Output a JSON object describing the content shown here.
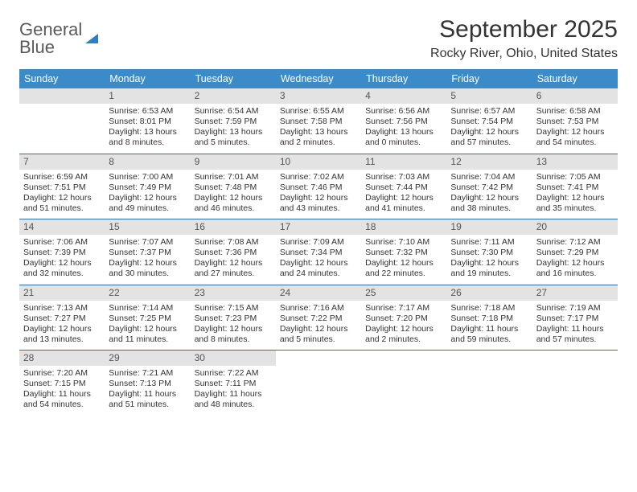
{
  "brand": {
    "name_top": "General",
    "name_bottom": "Blue"
  },
  "title": "September 2025",
  "location": "Rocky River, Ohio, United States",
  "colors": {
    "header_bg": "#3b8bc8",
    "week_divider": "#2d6fa8",
    "daynum_bg": "#e3e3e3",
    "text": "#333333",
    "brand_gray": "#5a5a5a",
    "brand_blue": "#2d7fc1"
  },
  "day_headers": [
    "Sunday",
    "Monday",
    "Tuesday",
    "Wednesday",
    "Thursday",
    "Friday",
    "Saturday"
  ],
  "weeks": [
    [
      {
        "n": "",
        "lines": []
      },
      {
        "n": "1",
        "lines": [
          "Sunrise: 6:53 AM",
          "Sunset: 8:01 PM",
          "Daylight: 13 hours and 8 minutes."
        ]
      },
      {
        "n": "2",
        "lines": [
          "Sunrise: 6:54 AM",
          "Sunset: 7:59 PM",
          "Daylight: 13 hours and 5 minutes."
        ]
      },
      {
        "n": "3",
        "lines": [
          "Sunrise: 6:55 AM",
          "Sunset: 7:58 PM",
          "Daylight: 13 hours and 2 minutes."
        ]
      },
      {
        "n": "4",
        "lines": [
          "Sunrise: 6:56 AM",
          "Sunset: 7:56 PM",
          "Daylight: 13 hours and 0 minutes."
        ]
      },
      {
        "n": "5",
        "lines": [
          "Sunrise: 6:57 AM",
          "Sunset: 7:54 PM",
          "Daylight: 12 hours and 57 minutes."
        ]
      },
      {
        "n": "6",
        "lines": [
          "Sunrise: 6:58 AM",
          "Sunset: 7:53 PM",
          "Daylight: 12 hours and 54 minutes."
        ]
      }
    ],
    [
      {
        "n": "7",
        "lines": [
          "Sunrise: 6:59 AM",
          "Sunset: 7:51 PM",
          "Daylight: 12 hours and 51 minutes."
        ]
      },
      {
        "n": "8",
        "lines": [
          "Sunrise: 7:00 AM",
          "Sunset: 7:49 PM",
          "Daylight: 12 hours and 49 minutes."
        ]
      },
      {
        "n": "9",
        "lines": [
          "Sunrise: 7:01 AM",
          "Sunset: 7:48 PM",
          "Daylight: 12 hours and 46 minutes."
        ]
      },
      {
        "n": "10",
        "lines": [
          "Sunrise: 7:02 AM",
          "Sunset: 7:46 PM",
          "Daylight: 12 hours and 43 minutes."
        ]
      },
      {
        "n": "11",
        "lines": [
          "Sunrise: 7:03 AM",
          "Sunset: 7:44 PM",
          "Daylight: 12 hours and 41 minutes."
        ]
      },
      {
        "n": "12",
        "lines": [
          "Sunrise: 7:04 AM",
          "Sunset: 7:42 PM",
          "Daylight: 12 hours and 38 minutes."
        ]
      },
      {
        "n": "13",
        "lines": [
          "Sunrise: 7:05 AM",
          "Sunset: 7:41 PM",
          "Daylight: 12 hours and 35 minutes."
        ]
      }
    ],
    [
      {
        "n": "14",
        "lines": [
          "Sunrise: 7:06 AM",
          "Sunset: 7:39 PM",
          "Daylight: 12 hours and 32 minutes."
        ]
      },
      {
        "n": "15",
        "lines": [
          "Sunrise: 7:07 AM",
          "Sunset: 7:37 PM",
          "Daylight: 12 hours and 30 minutes."
        ]
      },
      {
        "n": "16",
        "lines": [
          "Sunrise: 7:08 AM",
          "Sunset: 7:36 PM",
          "Daylight: 12 hours and 27 minutes."
        ]
      },
      {
        "n": "17",
        "lines": [
          "Sunrise: 7:09 AM",
          "Sunset: 7:34 PM",
          "Daylight: 12 hours and 24 minutes."
        ]
      },
      {
        "n": "18",
        "lines": [
          "Sunrise: 7:10 AM",
          "Sunset: 7:32 PM",
          "Daylight: 12 hours and 22 minutes."
        ]
      },
      {
        "n": "19",
        "lines": [
          "Sunrise: 7:11 AM",
          "Sunset: 7:30 PM",
          "Daylight: 12 hours and 19 minutes."
        ]
      },
      {
        "n": "20",
        "lines": [
          "Sunrise: 7:12 AM",
          "Sunset: 7:29 PM",
          "Daylight: 12 hours and 16 minutes."
        ]
      }
    ],
    [
      {
        "n": "21",
        "lines": [
          "Sunrise: 7:13 AM",
          "Sunset: 7:27 PM",
          "Daylight: 12 hours and 13 minutes."
        ]
      },
      {
        "n": "22",
        "lines": [
          "Sunrise: 7:14 AM",
          "Sunset: 7:25 PM",
          "Daylight: 12 hours and 11 minutes."
        ]
      },
      {
        "n": "23",
        "lines": [
          "Sunrise: 7:15 AM",
          "Sunset: 7:23 PM",
          "Daylight: 12 hours and 8 minutes."
        ]
      },
      {
        "n": "24",
        "lines": [
          "Sunrise: 7:16 AM",
          "Sunset: 7:22 PM",
          "Daylight: 12 hours and 5 minutes."
        ]
      },
      {
        "n": "25",
        "lines": [
          "Sunrise: 7:17 AM",
          "Sunset: 7:20 PM",
          "Daylight: 12 hours and 2 minutes."
        ]
      },
      {
        "n": "26",
        "lines": [
          "Sunrise: 7:18 AM",
          "Sunset: 7:18 PM",
          "Daylight: 11 hours and 59 minutes."
        ]
      },
      {
        "n": "27",
        "lines": [
          "Sunrise: 7:19 AM",
          "Sunset: 7:17 PM",
          "Daylight: 11 hours and 57 minutes."
        ]
      }
    ],
    [
      {
        "n": "28",
        "lines": [
          "Sunrise: 7:20 AM",
          "Sunset: 7:15 PM",
          "Daylight: 11 hours and 54 minutes."
        ]
      },
      {
        "n": "29",
        "lines": [
          "Sunrise: 7:21 AM",
          "Sunset: 7:13 PM",
          "Daylight: 11 hours and 51 minutes."
        ]
      },
      {
        "n": "30",
        "lines": [
          "Sunrise: 7:22 AM",
          "Sunset: 7:11 PM",
          "Daylight: 11 hours and 48 minutes."
        ]
      },
      {
        "n": "",
        "lines": []
      },
      {
        "n": "",
        "lines": []
      },
      {
        "n": "",
        "lines": []
      },
      {
        "n": "",
        "lines": []
      }
    ]
  ]
}
